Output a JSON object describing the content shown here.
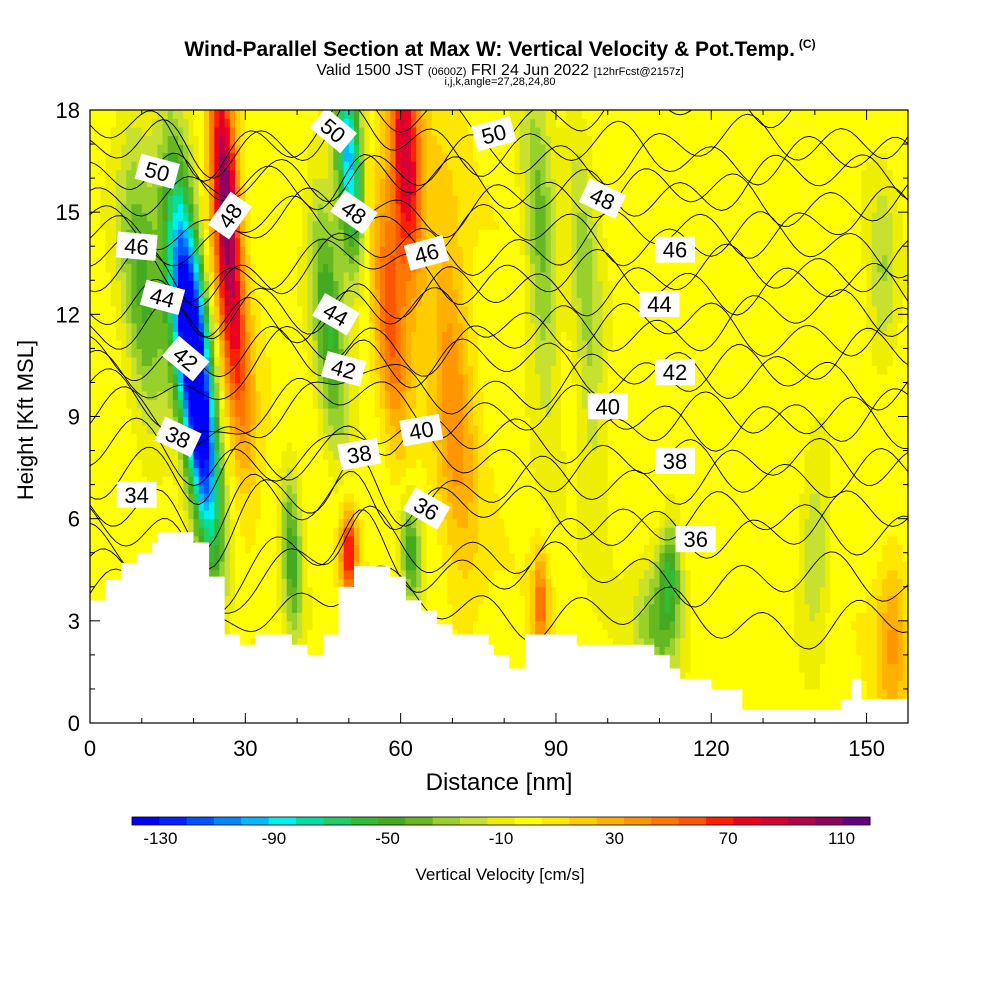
{
  "header": {
    "title": "Wind-Parallel Section at Max W: Vertical Velocity & Pot.Temp.",
    "copyright": "(C)",
    "valid_prefix": "Valid 1500 JST",
    "valid_utc": "(0600Z)",
    "valid_date": "FRI 24 Jun 2022",
    "forecast_info": "[12hrFcst@2157z]",
    "grid_note": "i,j,k,angle=27,28,24,80"
  },
  "chart_data": {
    "type": "heatmap",
    "title": "Wind-Parallel Section at Max W: Vertical Velocity & Pot.Temp.",
    "xlabel": "Distance [nm]",
    "ylabel": "Height [Kft MSL]",
    "xlim": [
      0,
      158
    ],
    "ylim": [
      0,
      18
    ],
    "x_ticks": [
      0,
      30,
      60,
      90,
      120,
      150
    ],
    "y_ticks": [
      0,
      3,
      6,
      9,
      12,
      15,
      18
    ],
    "colorbar": {
      "label": "Vertical Velocity [cm/s]",
      "tick_labels": [
        "-130",
        "-90",
        "-50",
        "-10",
        "30",
        "70",
        "110"
      ],
      "levels": [
        -140,
        -130,
        -120,
        -110,
        -100,
        -90,
        -80,
        -70,
        -60,
        -50,
        -40,
        -30,
        -20,
        -10,
        0,
        10,
        20,
        30,
        40,
        50,
        60,
        70,
        80,
        90,
        100,
        110,
        120
      ],
      "colors": [
        "#0000ff",
        "#0022ff",
        "#0055ff",
        "#0088ff",
        "#00bbff",
        "#00f0f0",
        "#00e0a0",
        "#22cc66",
        "#33bb33",
        "#44aa22",
        "#66b822",
        "#99d12c",
        "#c8e030",
        "#eeee00",
        "#ffff00",
        "#ffe800",
        "#ffcc00",
        "#ffb000",
        "#ff9600",
        "#ff7700",
        "#ff5500",
        "#ff2000",
        "#ee0022",
        "#d80033",
        "#b8004a",
        "#900060",
        "#660080"
      ]
    },
    "vertical_velocity_features": [
      {
        "x": 21,
        "z": 9.5,
        "w": -135,
        "sx": 3.0,
        "sz": 5.0,
        "tilt": 0.55
      },
      {
        "x": 18,
        "z": 12.5,
        "w": -80,
        "sx": 3.5,
        "sz": 4.5,
        "tilt": 0.55
      },
      {
        "x": 10,
        "z": 13,
        "w": -45,
        "sx": 4,
        "sz": 5,
        "tilt": 0.4
      },
      {
        "x": 26,
        "z": 16,
        "w": 105,
        "sx": 2.5,
        "sz": 3.5,
        "tilt": 0.35
      },
      {
        "x": 28,
        "z": 11,
        "w": 60,
        "sx": 3,
        "sz": 4,
        "tilt": 0.5
      },
      {
        "x": 50,
        "z": 16.5,
        "w": -100,
        "sx": 2.5,
        "sz": 3.0,
        "tilt": 0.3
      },
      {
        "x": 46,
        "z": 12,
        "w": -55,
        "sx": 3,
        "sz": 4,
        "tilt": 0.45
      },
      {
        "x": 61,
        "z": 16.5,
        "w": 95,
        "sx": 3,
        "sz": 3.5,
        "tilt": 0.3
      },
      {
        "x": 58,
        "z": 12,
        "w": 55,
        "sx": 3,
        "sz": 4,
        "tilt": 0.4
      },
      {
        "x": 50,
        "z": 5.0,
        "w": 80,
        "sx": 1.6,
        "sz": 1.2,
        "tilt": 0
      },
      {
        "x": 62,
        "z": 5,
        "w": -55,
        "sx": 2,
        "sz": 1.5,
        "tilt": 0.2
      },
      {
        "x": 39,
        "z": 5,
        "w": -50,
        "sx": 2,
        "sz": 2.5,
        "tilt": 0.2
      },
      {
        "x": 70,
        "z": 10,
        "w": 40,
        "sx": 4,
        "sz": 6,
        "tilt": 0.35
      },
      {
        "x": 87,
        "z": 14,
        "w": -40,
        "sx": 3,
        "sz": 5,
        "tilt": 0.3
      },
      {
        "x": 96,
        "z": 12,
        "w": -30,
        "sx": 3,
        "sz": 6,
        "tilt": 0.3
      },
      {
        "x": 87,
        "z": 3.5,
        "w": 50,
        "sx": 1.5,
        "sz": 1.5,
        "tilt": 0
      },
      {
        "x": 110,
        "z": 3,
        "w": -40,
        "sx": 5,
        "sz": 2,
        "tilt": 0
      },
      {
        "x": 112,
        "z": 4.5,
        "w": -45,
        "sx": 2,
        "sz": 1.5,
        "tilt": 0
      },
      {
        "x": 140,
        "z": 5,
        "w": -30,
        "sx": 3,
        "sz": 2.5,
        "tilt": 0
      },
      {
        "x": 155,
        "z": 2.5,
        "w": 35,
        "sx": 3,
        "sz": 2.5,
        "tilt": 0
      },
      {
        "x": 153,
        "z": 13,
        "w": -25,
        "sx": 3,
        "sz": 3,
        "tilt": 0
      }
    ],
    "terrain": [
      {
        "x": 0,
        "h": 3.6
      },
      {
        "x": 3,
        "h": 4.2
      },
      {
        "x": 6,
        "h": 4.7
      },
      {
        "x": 9,
        "h": 5.0
      },
      {
        "x": 12,
        "h": 5.3
      },
      {
        "x": 13,
        "h": 5.6
      },
      {
        "x": 19,
        "h": 5.6
      },
      {
        "x": 20,
        "h": 5.3
      },
      {
        "x": 23,
        "h": 4.3
      },
      {
        "x": 26,
        "h": 2.6
      },
      {
        "x": 29,
        "h": 2.3
      },
      {
        "x": 32,
        "h": 2.6
      },
      {
        "x": 35,
        "h": 2.6
      },
      {
        "x": 38,
        "h": 2.6
      },
      {
        "x": 39,
        "h": 2.3
      },
      {
        "x": 42,
        "h": 2.0
      },
      {
        "x": 45,
        "h": 2.6
      },
      {
        "x": 48,
        "h": 4.0
      },
      {
        "x": 51,
        "h": 4.6
      },
      {
        "x": 57,
        "h": 4.6
      },
      {
        "x": 58,
        "h": 4.3
      },
      {
        "x": 61,
        "h": 3.6
      },
      {
        "x": 64,
        "h": 3.3
      },
      {
        "x": 67,
        "h": 2.9
      },
      {
        "x": 70,
        "h": 2.6
      },
      {
        "x": 77,
        "h": 2.3
      },
      {
        "x": 78,
        "h": 2.0
      },
      {
        "x": 81,
        "h": 1.6
      },
      {
        "x": 84,
        "h": 2.6
      },
      {
        "x": 87,
        "h": 2.6
      },
      {
        "x": 93,
        "h": 2.6
      },
      {
        "x": 94,
        "h": 2.3
      },
      {
        "x": 106,
        "h": 2.3
      },
      {
        "x": 109,
        "h": 2.0
      },
      {
        "x": 112,
        "h": 1.6
      },
      {
        "x": 114,
        "h": 1.3
      },
      {
        "x": 120,
        "h": 1.0
      },
      {
        "x": 126,
        "h": 0.4
      },
      {
        "x": 144,
        "h": 0.4
      },
      {
        "x": 145,
        "h": 0.7
      },
      {
        "x": 147,
        "h": 1.3
      },
      {
        "x": 149,
        "h": 0.7
      },
      {
        "x": 158,
        "h": 0.7
      }
    ],
    "isentropes_thetas": [
      32,
      33,
      34,
      35,
      36,
      37,
      38,
      39,
      40,
      41,
      42,
      43,
      44,
      45,
      46,
      47,
      48,
      49,
      50,
      51,
      52
    ],
    "isentropes_base_heights": [
      3.8,
      4.2,
      5.0,
      5.9,
      6.7,
      7.4,
      8.2,
      8.9,
      9.6,
      10.3,
      11.0,
      11.7,
      12.3,
      13.0,
      13.6,
      14.3,
      14.9,
      15.5,
      16.2,
      16.8,
      17.4
    ],
    "isentrope_labels": [
      {
        "text": "50",
        "x": 13,
        "z": 16.2,
        "rot": 15
      },
      {
        "text": "46",
        "x": 9,
        "z": 14.0,
        "rot": 5
      },
      {
        "text": "44",
        "x": 14,
        "z": 12.5,
        "rot": 15
      },
      {
        "text": "42",
        "x": 18.5,
        "z": 10.7,
        "rot": 40
      },
      {
        "text": "38",
        "x": 17,
        "z": 8.4,
        "rot": 25
      },
      {
        "text": "34",
        "x": 9,
        "z": 6.7,
        "rot": 0
      },
      {
        "text": "48",
        "x": 27,
        "z": 14.9,
        "rot": -55
      },
      {
        "text": "50",
        "x": 47,
        "z": 17.4,
        "rot": 40
      },
      {
        "text": "48",
        "x": 51,
        "z": 15.0,
        "rot": 35
      },
      {
        "text": "44",
        "x": 47.5,
        "z": 12.0,
        "rot": 30
      },
      {
        "text": "42",
        "x": 49,
        "z": 10.4,
        "rot": 15
      },
      {
        "text": "38",
        "x": 52,
        "z": 7.9,
        "rot": -10
      },
      {
        "text": "46",
        "x": 65,
        "z": 13.8,
        "rot": -15
      },
      {
        "text": "40",
        "x": 64,
        "z": 8.6,
        "rot": -10
      },
      {
        "text": "36",
        "x": 65,
        "z": 6.3,
        "rot": 30
      },
      {
        "text": "50",
        "x": 78,
        "z": 17.3,
        "rot": -15
      },
      {
        "text": "48",
        "x": 99,
        "z": 15.4,
        "rot": 25
      },
      {
        "text": "46",
        "x": 113,
        "z": 13.9,
        "rot": 0
      },
      {
        "text": "44",
        "x": 110,
        "z": 12.3,
        "rot": 0
      },
      {
        "text": "42",
        "x": 113,
        "z": 10.3,
        "rot": 0
      },
      {
        "text": "40",
        "x": 100,
        "z": 9.3,
        "rot": 0
      },
      {
        "text": "38",
        "x": 113,
        "z": 7.7,
        "rot": 0
      },
      {
        "text": "36",
        "x": 117,
        "z": 5.4,
        "rot": 0
      }
    ]
  }
}
